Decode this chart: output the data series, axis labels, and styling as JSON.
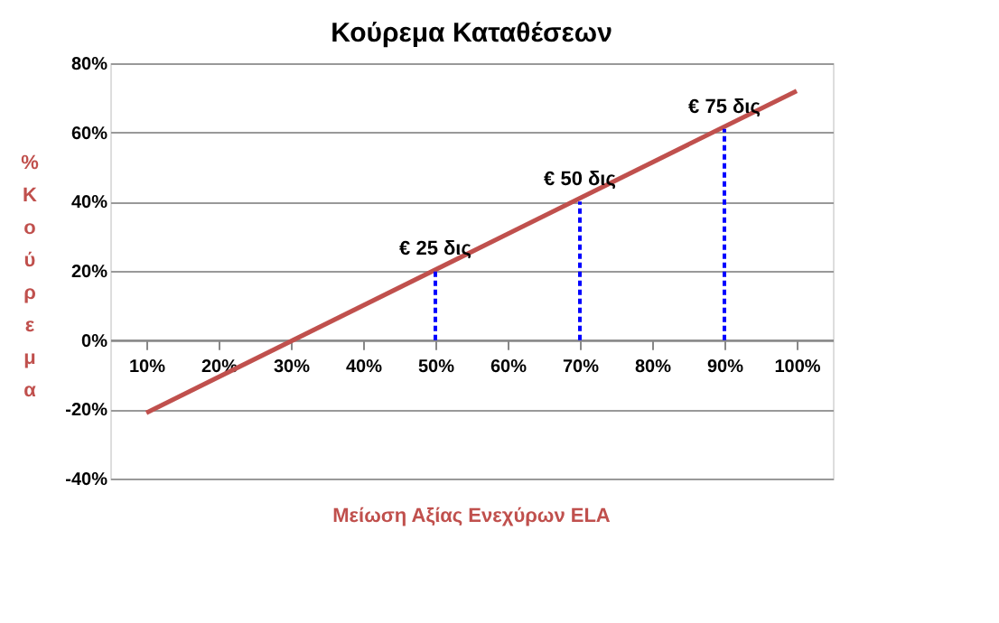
{
  "chart_data": {
    "type": "line",
    "title": "Κούρεμα Καταθέσεων",
    "xlabel": "Μείωση Αξίας Ενεχύρων ELA",
    "ylabel": "% Κούρεμα",
    "xlim": [
      5,
      105
    ],
    "ylim": [
      -40,
      80
    ],
    "xticks": [
      {
        "value": 10,
        "label": "10%"
      },
      {
        "value": 20,
        "label": "20%"
      },
      {
        "value": 30,
        "label": "30%"
      },
      {
        "value": 40,
        "label": "40%"
      },
      {
        "value": 50,
        "label": "50%"
      },
      {
        "value": 60,
        "label": "60%"
      },
      {
        "value": 70,
        "label": "70%"
      },
      {
        "value": 80,
        "label": "80%"
      },
      {
        "value": 90,
        "label": "90%"
      },
      {
        "value": 100,
        "label": "100%"
      }
    ],
    "yticks": [
      {
        "value": -40,
        "label": "-40%"
      },
      {
        "value": -20,
        "label": "-20%"
      },
      {
        "value": 0,
        "label": "0%"
      },
      {
        "value": 20,
        "label": "20%"
      },
      {
        "value": 40,
        "label": "40%"
      },
      {
        "value": 60,
        "label": "60%"
      },
      {
        "value": 80,
        "label": "80%"
      }
    ],
    "grid": "y",
    "marker": "none",
    "series": [
      {
        "color": "#c0504d",
        "x": [
          10,
          100
        ],
        "values": [
          -21,
          72
        ],
        "line_style": "solid"
      },
      {
        "color": "#0000ff",
        "x": [
          50,
          50
        ],
        "values": [
          0,
          20
        ],
        "line_style": "dashed"
      },
      {
        "color": "#0000ff",
        "x": [
          70,
          70
        ],
        "values": [
          0,
          40
        ],
        "line_style": "dashed"
      },
      {
        "color": "#0000ff",
        "x": [
          90,
          90
        ],
        "values": [
          0,
          61
        ],
        "line_style": "dashed"
      }
    ],
    "annotations": [
      {
        "text": "€ 25 δις",
        "x": 50,
        "y": 20
      },
      {
        "text": "€ 50 δις",
        "x": 70,
        "y": 40
      },
      {
        "text": "€ 75 δις",
        "x": 90,
        "y": 61
      }
    ]
  }
}
